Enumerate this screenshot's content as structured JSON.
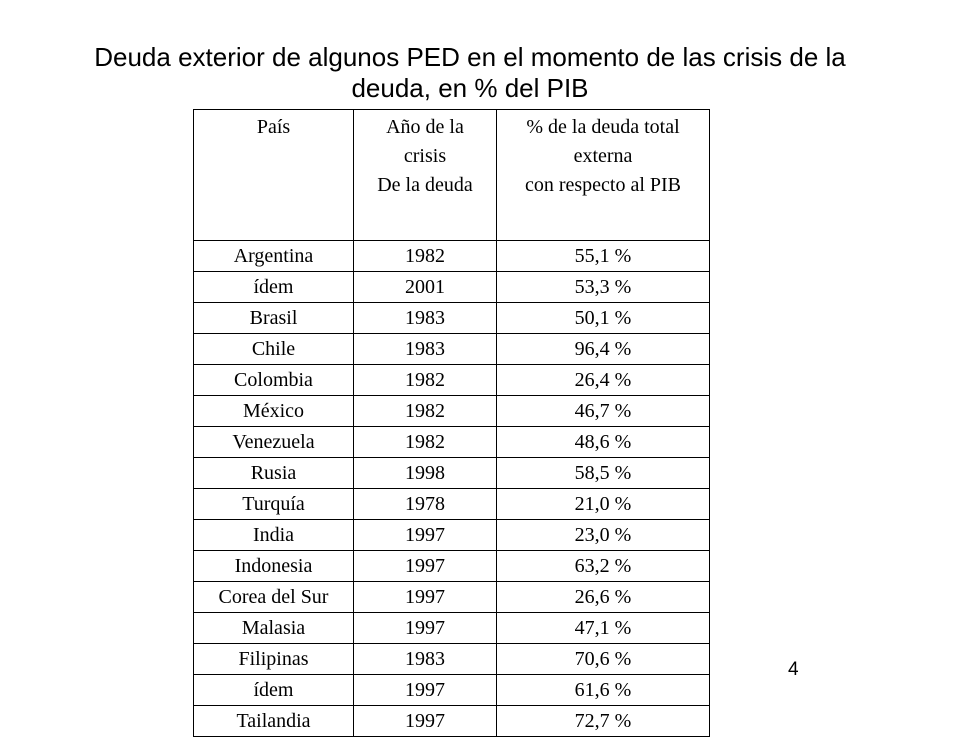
{
  "title": {
    "line1": "Deuda exterior de algunos PED en el momento de las crisis de la",
    "line2": "deuda, en % del PIB"
  },
  "table": {
    "headers": {
      "country": "País",
      "year_line1": "Año de la",
      "year_line2": "crisis",
      "year_line3": "De la deuda",
      "debt_line1": "% de la deuda total",
      "debt_line2": "externa",
      "debt_line3": "con respecto al PIB"
    },
    "rows": [
      {
        "country": "Argentina",
        "year": "1982",
        "debt": "55,1 %"
      },
      {
        "country": "ídem",
        "year": "2001",
        "debt": "53,3 %"
      },
      {
        "country": "Brasil",
        "year": "1983",
        "debt": "50,1 %"
      },
      {
        "country": "Chile",
        "year": "1983",
        "debt": "96,4 %"
      },
      {
        "country": "Colombia",
        "year": "1982",
        "debt": "26,4 %"
      },
      {
        "country": "México",
        "year": "1982",
        "debt": "46,7 %"
      },
      {
        "country": "Venezuela",
        "year": "1982",
        "debt": "48,6 %"
      },
      {
        "country": "Rusia",
        "year": "1998",
        "debt": "58,5 %"
      },
      {
        "country": "Turquía",
        "year": "1978",
        "debt": "21,0 %"
      },
      {
        "country": "India",
        "year": "1997",
        "debt": "23,0 %"
      },
      {
        "country": "Indonesia",
        "year": "1997",
        "debt": "63,2 %"
      },
      {
        "country": "Corea del Sur",
        "year": "1997",
        "debt": "26,6 %"
      },
      {
        "country": "Malasia",
        "year": "1997",
        "debt": "47,1 %"
      },
      {
        "country": "Filipinas",
        "year": "1983",
        "debt": "70,6 %"
      },
      {
        "country": "ídem",
        "year": "1997",
        "debt": "61,6 %"
      },
      {
        "country": "Tailandia",
        "year": "1997",
        "debt": "72,7 %"
      }
    ]
  },
  "slide_number": "4"
}
